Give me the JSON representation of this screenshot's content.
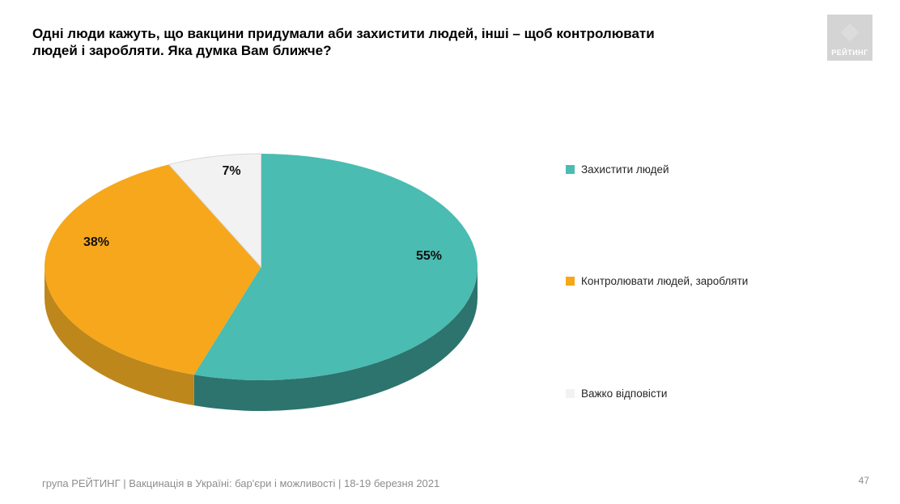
{
  "slide": {
    "title_line1": "Одні люди кажуть, що вакцини придумали аби захистити людей, інші – щоб контролювати",
    "title_line2": "людей і заробляти. Яка думка Вам ближче?",
    "footer": "група РЕЙТИНГ | Вакцинація в Україні: бар'єри і можливості | 18-19 березня 2021",
    "page_number": "47",
    "logo_text": "РЕЙТИНГ"
  },
  "chart_data": {
    "type": "pie",
    "style": "3d",
    "title": "",
    "labels": [
      "Захистити людей",
      "Контролювати людей, заробляти",
      "Важко відповісти"
    ],
    "values": [
      55,
      38,
      7
    ],
    "value_labels": [
      "55%",
      "38%",
      "7%"
    ],
    "colors": [
      "#4ABCB2",
      "#F6A71B",
      "#F2F2F2"
    ],
    "side_colors": [
      "#2C746D",
      "#BE871C",
      "#D9D9D9"
    ],
    "start_angle": 0,
    "direction": "clockwise",
    "legend_position": "right"
  }
}
